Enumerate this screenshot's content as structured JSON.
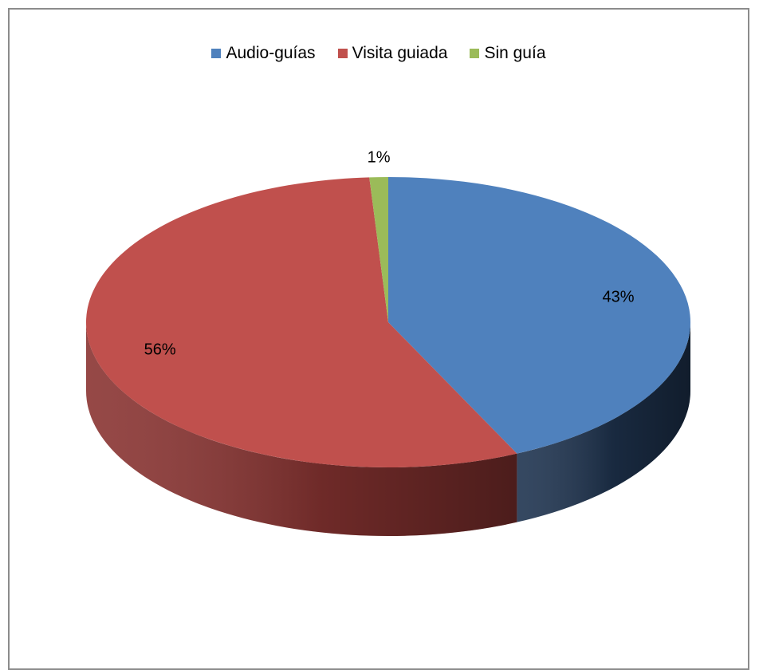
{
  "chart_data": {
    "type": "pie",
    "title": "",
    "legend_position": "top",
    "series": [
      {
        "name": "Audio-guías",
        "value": 43,
        "label": "43%",
        "color": "#4f81bd",
        "side_color": "#1f3450"
      },
      {
        "name": "Visita guiada",
        "value": 56,
        "label": "56%",
        "color": "#c0504d",
        "side_color": "#8a3432"
      },
      {
        "name": "Sin guía",
        "value": 1,
        "label": "1%",
        "color": "#9bbb59",
        "side_color": "#5f7436"
      }
    ]
  }
}
